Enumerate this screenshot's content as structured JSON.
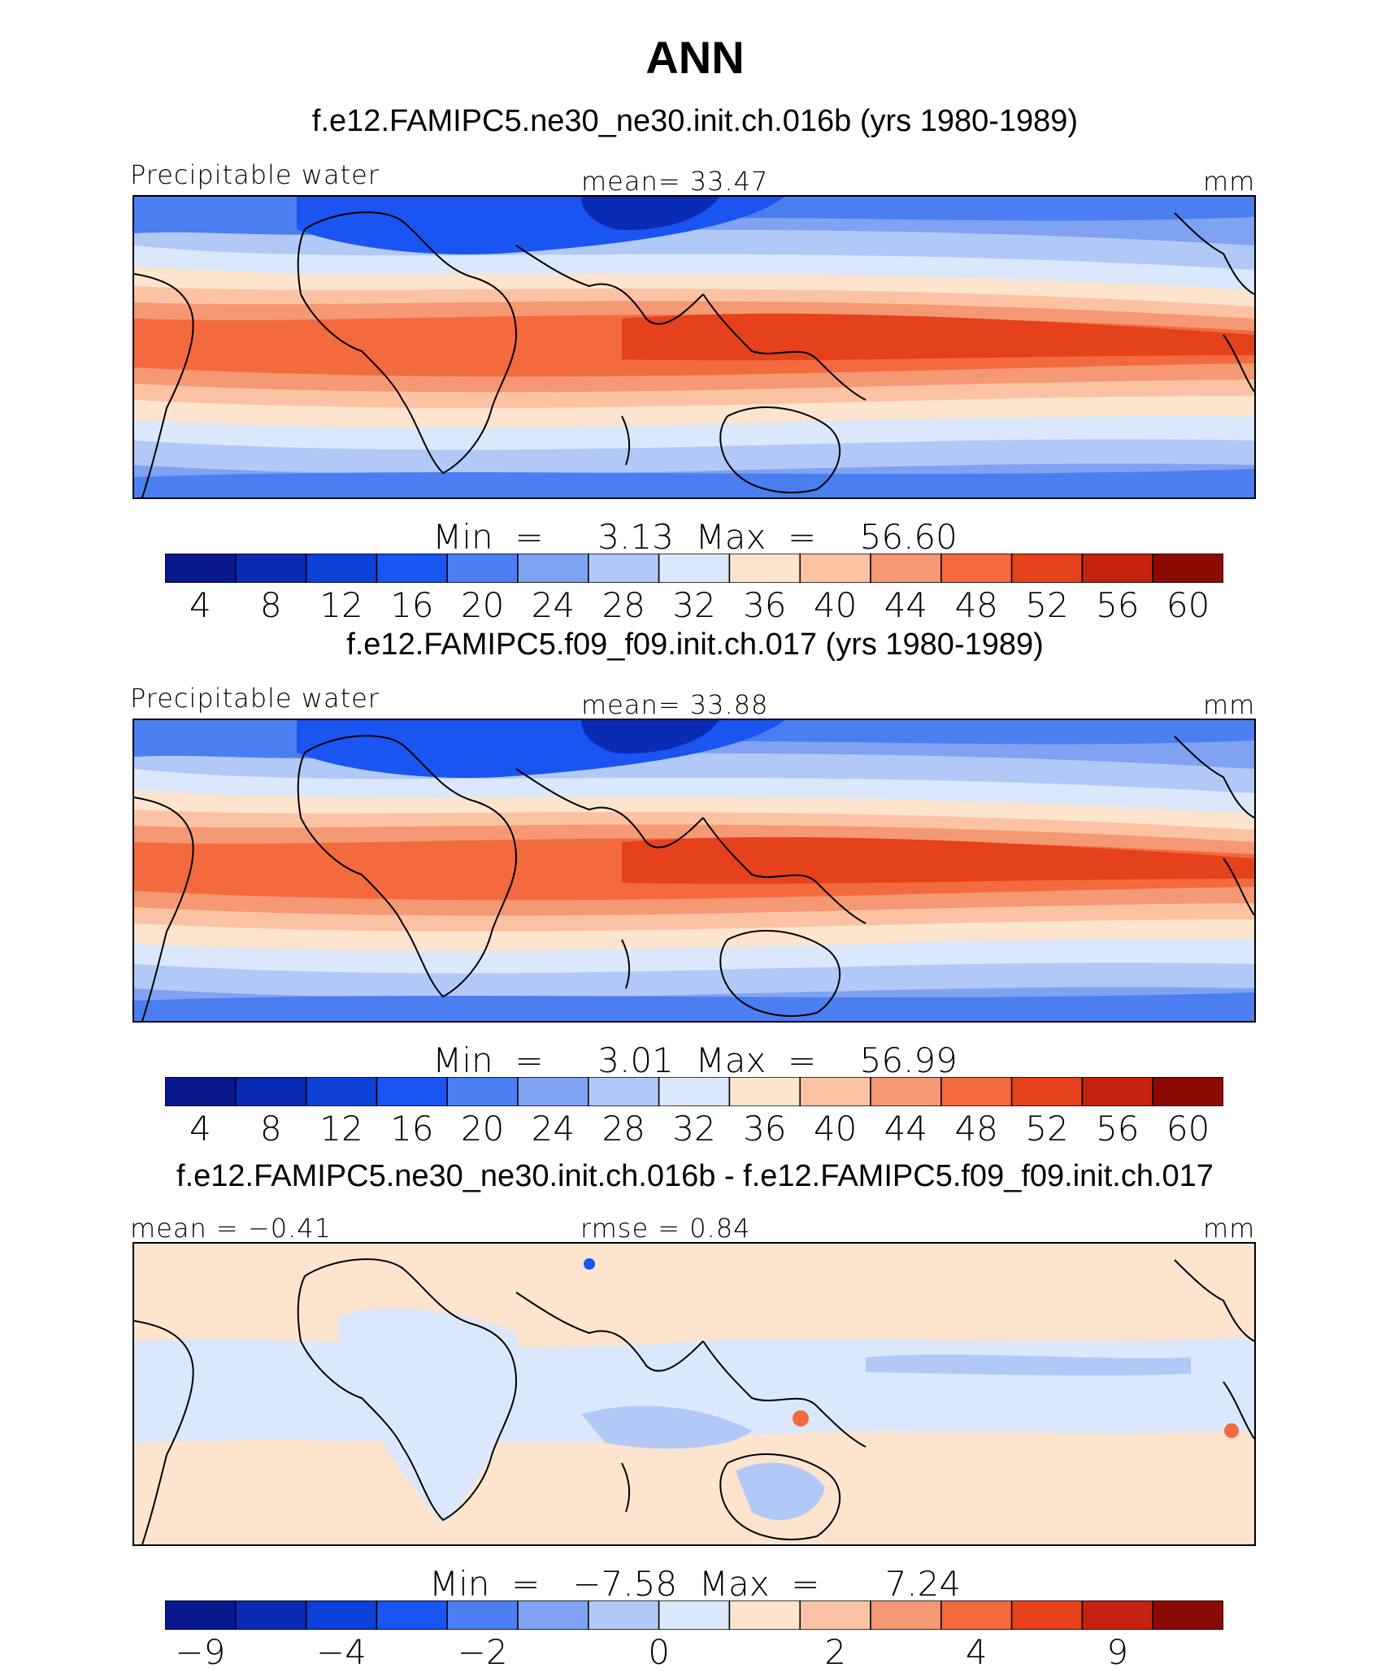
{
  "main_title": "ANN",
  "palette": [
    "#0a1a8c",
    "#0b2bb5",
    "#0d3fd9",
    "#1a55f2",
    "#4b7ef0",
    "#7fa3f2",
    "#b2c9f7",
    "#dbe7fb",
    "#fde4cf",
    "#fbc3a3",
    "#f59874",
    "#f36a3e",
    "#e4411c",
    "#c52310",
    "#8c0a04"
  ],
  "chart_data": [
    {
      "type": "heatmap",
      "panel": "top",
      "title": "f.e12.FAMIPC5.ne30_ne30.init.ch.016b (yrs 1980-1989)",
      "variable": "Precipitable water",
      "mean_text": "mean=   33.47",
      "units": "mm",
      "min_max_text": "Min  =     3.13  Max  =    56.60",
      "mean": 33.47,
      "min": 3.13,
      "max": 56.6,
      "colorbar": {
        "levels": [
          4,
          8,
          12,
          16,
          20,
          24,
          28,
          32,
          36,
          40,
          44,
          48,
          52,
          56,
          60
        ],
        "labels": [
          "4",
          "8",
          "12",
          "16",
          "20",
          "24",
          "28",
          "32",
          "36",
          "40",
          "44",
          "48",
          "52",
          "56",
          "60"
        ]
      }
    },
    {
      "type": "heatmap",
      "panel": "middle",
      "title": "f.e12.FAMIPC5.f09_f09.init.ch.017 (yrs 1980-1989)",
      "variable": "Precipitable water",
      "mean_text": "mean=   33.88",
      "units": "mm",
      "min_max_text": "Min  =     3.01  Max  =    56.99",
      "mean": 33.88,
      "min": 3.01,
      "max": 56.99,
      "colorbar": {
        "levels": [
          4,
          8,
          12,
          16,
          20,
          24,
          28,
          32,
          36,
          40,
          44,
          48,
          52,
          56,
          60
        ],
        "labels": [
          "4",
          "8",
          "12",
          "16",
          "20",
          "24",
          "28",
          "32",
          "36",
          "40",
          "44",
          "48",
          "52",
          "56",
          "60"
        ]
      }
    },
    {
      "type": "heatmap",
      "panel": "difference",
      "title": "f.e12.FAMIPC5.ne30_ne30.init.ch.016b - f.e12.FAMIPC5.f09_f09.init.ch.017",
      "mean_text": "mean  =   −0.41",
      "rmse_text": "rmse  =    0.84",
      "units": "mm",
      "min_max_text": "Min  =   −7.58  Max  =      7.24",
      "mean": -0.41,
      "rmse": 0.84,
      "min": -7.58,
      "max": 7.24,
      "colorbar": {
        "labels": [
          "−9",
          "−4",
          "−2",
          "0",
          "2",
          "4",
          "9"
        ]
      }
    }
  ]
}
